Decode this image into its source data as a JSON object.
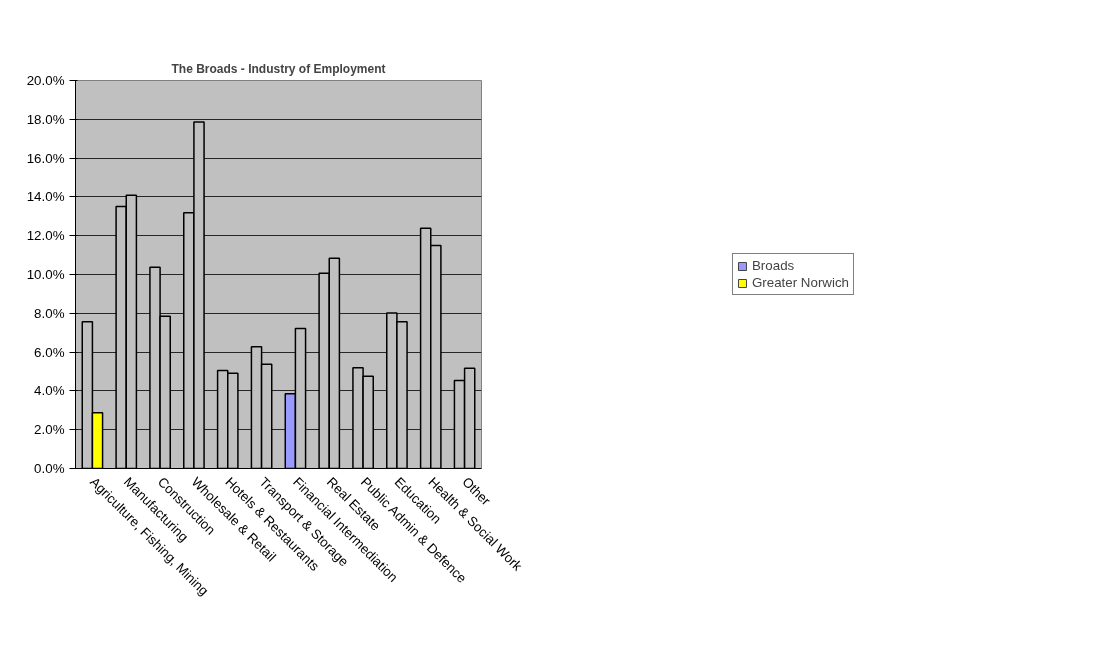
{
  "chart_data": {
    "type": "bar",
    "title": "The Broads - Industry of Employment",
    "categories": [
      "Agriculture, Fishing, Mining",
      "Manufacturing",
      "Construction",
      "Wholesale & Retail",
      "Hotels & Restaurants",
      "Transport & Storage",
      "Financial Intermediation",
      "Real Estate",
      "Public Admin & Defence",
      "Education",
      "Health & Social Work",
      "Other"
    ],
    "series": [
      {
        "name": "Broads",
        "color": "#9999ff",
        "colors": [
          "#c0c0c0",
          "#c0c0c0",
          "#c0c0c0",
          "#c0c0c0",
          "#c0c0c0",
          "#c0c0c0",
          "#9999ff",
          "#c0c0c0",
          "#c0c0c0",
          "#c0c0c0",
          "#c0c0c0",
          "#c0c0c0"
        ],
        "values": [
          7.57,
          13.5,
          10.37,
          13.18,
          5.05,
          6.28,
          3.85,
          10.06,
          5.19,
          8.02,
          12.39,
          4.54
        ]
      },
      {
        "name": "Greater Norwich",
        "color": "#ffff00",
        "colors": [
          "#ffff00",
          "#c0c0c0",
          "#c0c0c0",
          "#c0c0c0",
          "#c0c0c0",
          "#c0c0c0",
          "#c0c0c0",
          "#c0c0c0",
          "#c0c0c0",
          "#c0c0c0",
          "#c0c0c0",
          "#c0c0c0"
        ],
        "values": [
          2.87,
          14.08,
          7.85,
          17.86,
          4.91,
          5.38,
          7.22,
          10.84,
          4.75,
          7.57,
          11.49,
          5.17
        ]
      }
    ],
    "ylim": [
      0,
      20
    ],
    "yticks": [
      {
        "value": 0,
        "label": "0.0%"
      },
      {
        "value": 2,
        "label": "2.0%"
      },
      {
        "value": 4,
        "label": "4.0%"
      },
      {
        "value": 6,
        "label": "6.0%"
      },
      {
        "value": 8,
        "label": "8.0%"
      },
      {
        "value": 10,
        "label": "10.0%"
      },
      {
        "value": 12,
        "label": "12.0%"
      },
      {
        "value": 14,
        "label": "14.0%"
      },
      {
        "value": 16,
        "label": "16.0%"
      },
      {
        "value": 18,
        "label": "18.0%"
      },
      {
        "value": 20,
        "label": "20.0%"
      }
    ],
    "grid": "y",
    "legend": "right"
  }
}
